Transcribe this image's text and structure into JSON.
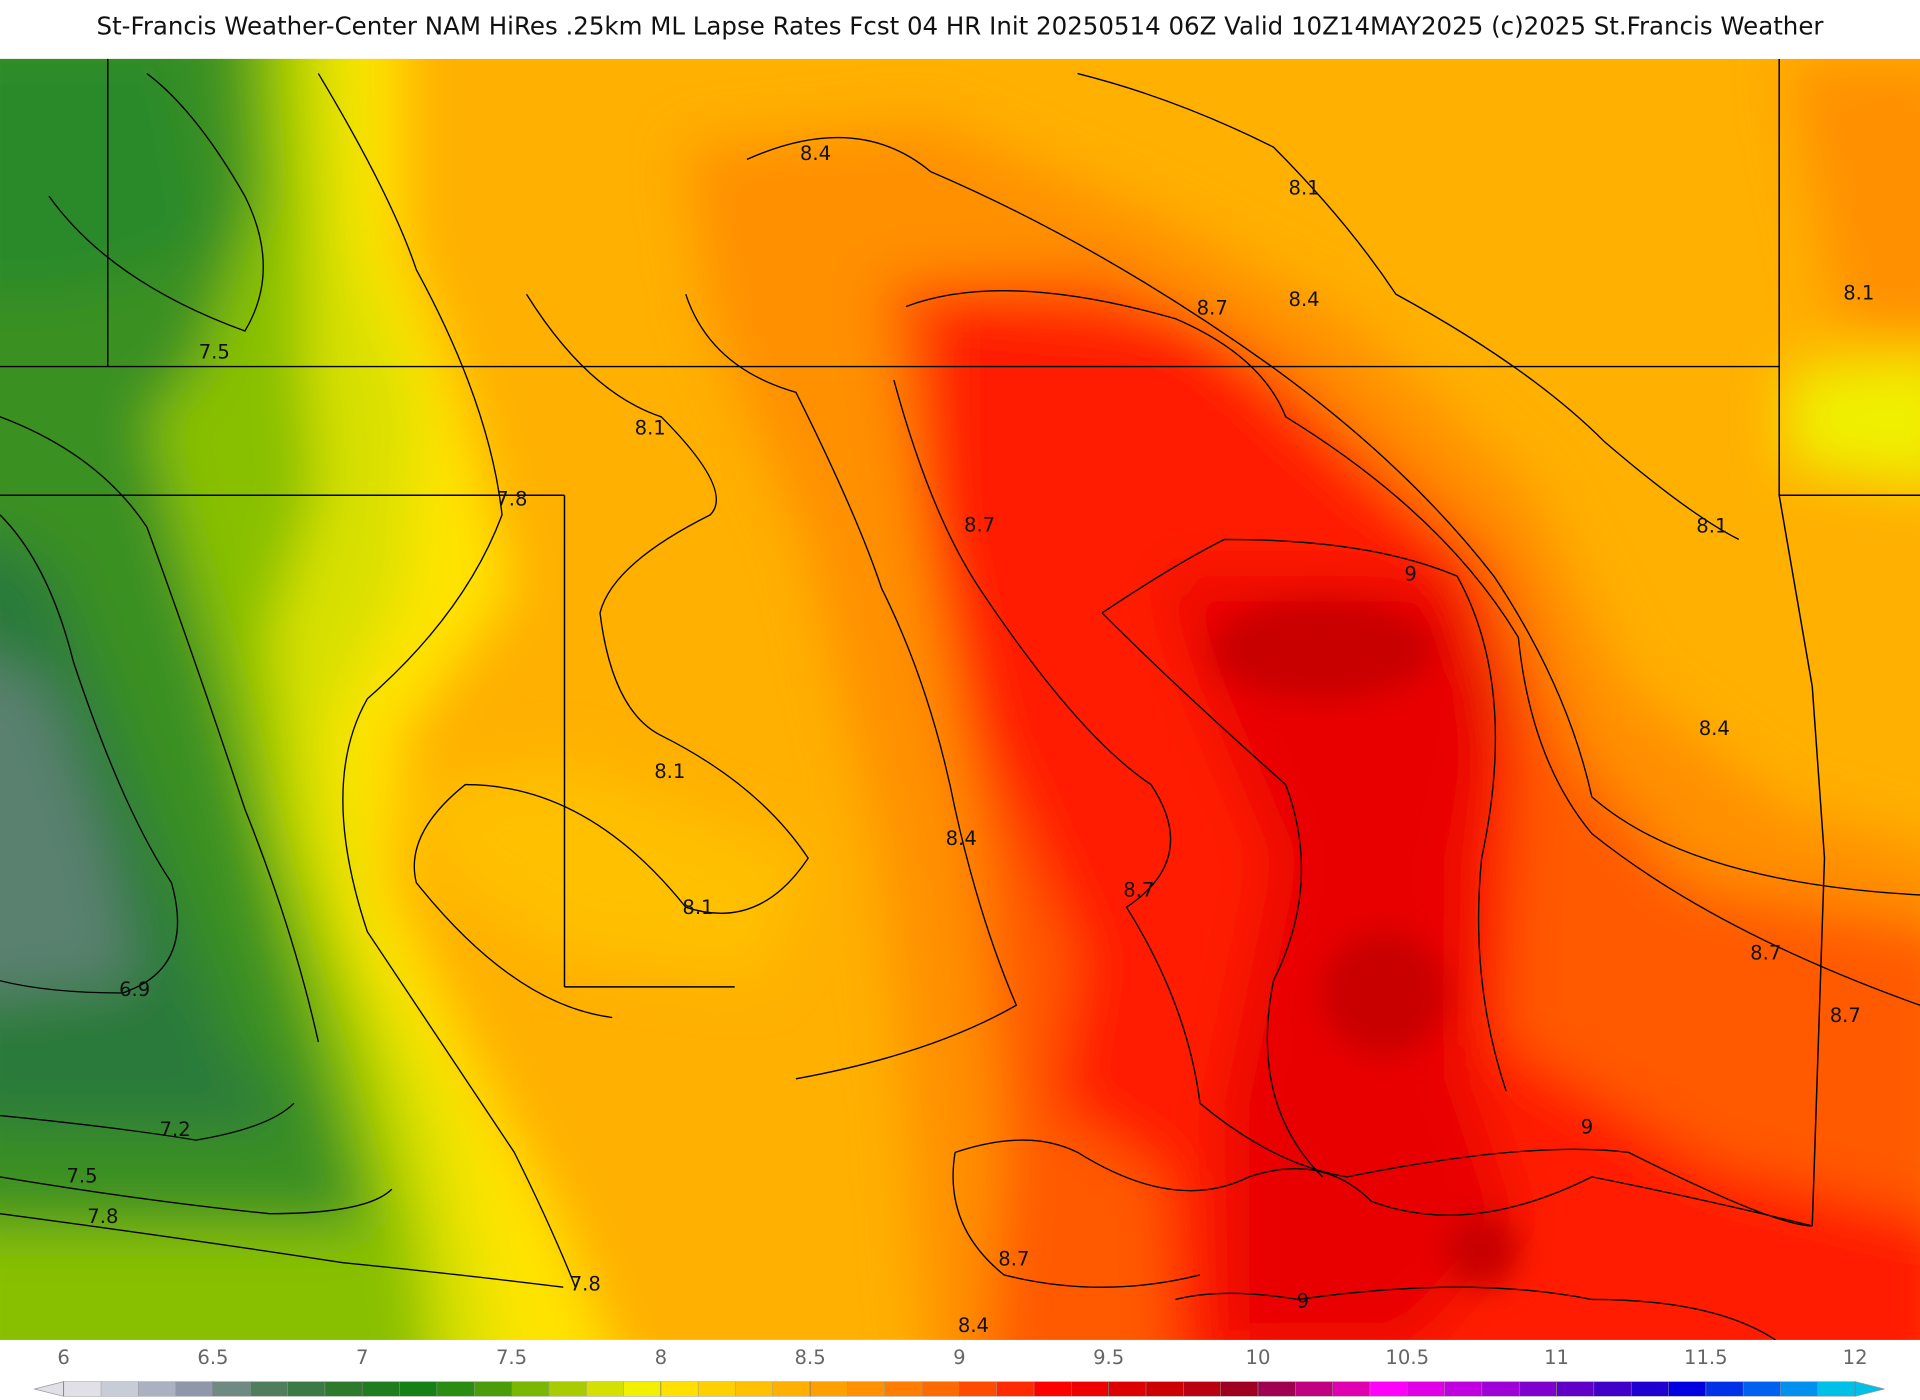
{
  "header": {
    "title": "St-Francis Weather-Center NAM HiRes .25km ML Lapse Rates  Fcst 04 HR Init 20250514 06Z  Valid 10Z14MAY2025    (c)2025 St.Francis Weather"
  },
  "map": {
    "contour_labels": [
      "8.4",
      "8.1",
      "8.7",
      "8.4",
      "8.1",
      "7.5",
      "8.1",
      "7.8",
      "8.7",
      "9",
      "8.1",
      "8.1",
      "8.4",
      "8.4",
      "8.1",
      "8.7",
      "6.9",
      "7.2",
      "7.5",
      "7.8",
      "8.7",
      "8.7",
      "9",
      "7.8",
      "8.7",
      "9",
      "8.4"
    ]
  },
  "colorbar": {
    "ticks": [
      6,
      6.5,
      7,
      7.5,
      8,
      8.5,
      9,
      9.5,
      10,
      10.5,
      11,
      11.5,
      12
    ],
    "colors": [
      "#e0e0e6",
      "#c8ccd6",
      "#aab2c2",
      "#8e98aa",
      "#6e8a82",
      "#4f7d5e",
      "#3a7a45",
      "#2d7a2d",
      "#1f7d1f",
      "#158015",
      "#2a8c10",
      "#4a9c0a",
      "#7ab800",
      "#a8cc00",
      "#d4e000",
      "#f0f000",
      "#ffe000",
      "#ffd000",
      "#ffc000",
      "#ffb000",
      "#ffa000",
      "#ff9000",
      "#ff7d00",
      "#ff6a00",
      "#ff4a00",
      "#ff2a00",
      "#ff0000",
      "#ee0000",
      "#dd0000",
      "#cc0000",
      "#b80010",
      "#a00020",
      "#a00050",
      "#c00080",
      "#e000b0",
      "#ff00ff",
      "#e000e8",
      "#c000e0",
      "#a000d8",
      "#8000d0",
      "#6000c8",
      "#4000c8",
      "#2000d0",
      "#0000e0",
      "#0030e8",
      "#0060f0",
      "#0090f0",
      "#00c0e8"
    ]
  }
}
